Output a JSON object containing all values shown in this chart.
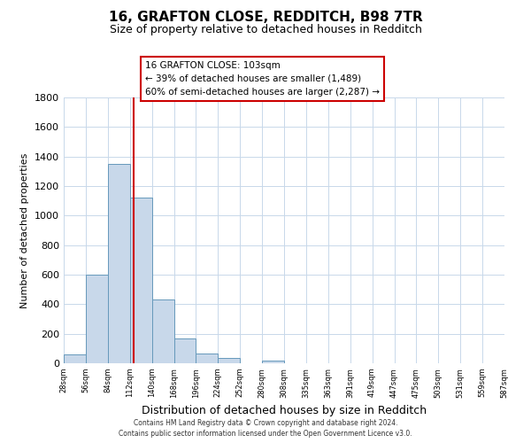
{
  "title": "16, GRAFTON CLOSE, REDDITCH, B98 7TR",
  "subtitle": "Size of property relative to detached houses in Redditch",
  "xlabel": "Distribution of detached houses by size in Redditch",
  "ylabel": "Number of detached properties",
  "bar_values": [
    60,
    600,
    1350,
    1120,
    430,
    170,
    65,
    35,
    0,
    20,
    0,
    0,
    0,
    0,
    0,
    0,
    0,
    0,
    0,
    0
  ],
  "bin_starts": [
    14,
    42,
    70,
    98,
    126,
    154,
    182,
    210,
    238,
    266,
    294,
    322,
    350,
    378,
    406,
    434,
    462,
    490,
    518,
    546
  ],
  "bin_width": 28,
  "tick_positions": [
    14,
    42,
    70,
    98,
    126,
    154,
    182,
    210,
    238,
    266,
    294,
    322,
    350,
    378,
    406,
    434,
    462,
    490,
    518,
    546,
    574
  ],
  "tick_labels": [
    "28sqm",
    "56sqm",
    "84sqm",
    "112sqm",
    "140sqm",
    "168sqm",
    "196sqm",
    "224sqm",
    "252sqm",
    "280sqm",
    "308sqm",
    "335sqm",
    "363sqm",
    "391sqm",
    "419sqm",
    "447sqm",
    "475sqm",
    "503sqm",
    "531sqm",
    "559sqm",
    "587sqm"
  ],
  "bar_color": "#c8d8ea",
  "bar_edge_color": "#6699bb",
  "property_line_x": 103,
  "xlim": [
    14,
    574
  ],
  "ylim": [
    0,
    1800
  ],
  "yticks": [
    0,
    200,
    400,
    600,
    800,
    1000,
    1200,
    1400,
    1600,
    1800
  ],
  "annotation_title": "16 GRAFTON CLOSE: 103sqm",
  "annotation_line1": "← 39% of detached houses are smaller (1,489)",
  "annotation_line2": "60% of semi-detached houses are larger (2,287) →",
  "annotation_box_color": "#ffffff",
  "annotation_box_edge": "#cc0000",
  "vline_color": "#cc0000",
  "footer1": "Contains HM Land Registry data © Crown copyright and database right 2024.",
  "footer2": "Contains public sector information licensed under the Open Government Licence v3.0.",
  "bg_color": "#ffffff",
  "grid_color": "#c8d8ea"
}
